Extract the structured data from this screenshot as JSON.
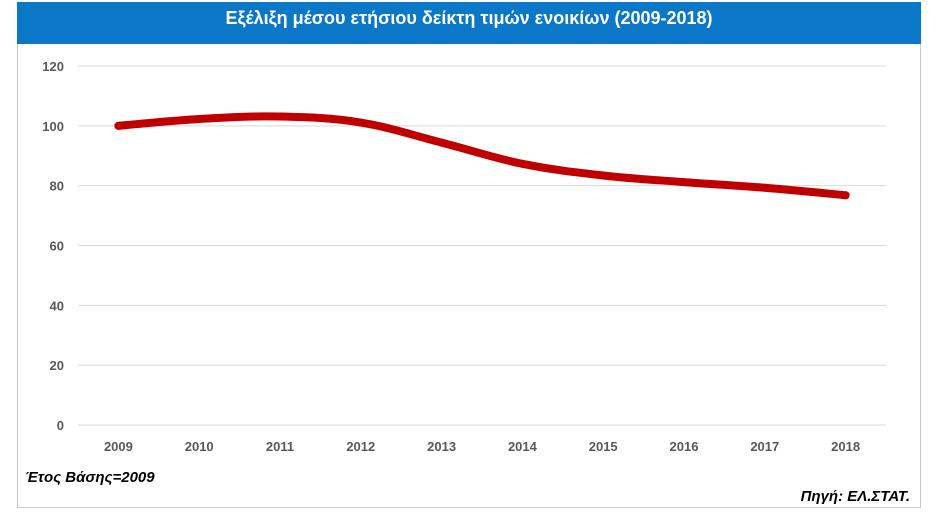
{
  "chart_data": {
    "type": "line",
    "title": "Εξέλιξη μέσου ετήσιου δείκτη τιμών ενοικίων (2009-2018)",
    "xlabel": "",
    "ylabel": "",
    "categories": [
      "2009",
      "2010",
      "2011",
      "2012",
      "2013",
      "2014",
      "2015",
      "2016",
      "2017",
      "2018"
    ],
    "y_ticks": [
      "0",
      "20",
      "40",
      "60",
      "80",
      "100",
      "120"
    ],
    "ylim": [
      0,
      120
    ],
    "grid": true,
    "series": [
      {
        "values": [
          100,
          102.3,
          103.1,
          101.1,
          94.4,
          87.3,
          83.4,
          81.2,
          79.3,
          76.8
        ],
        "color": "#c00000"
      }
    ]
  },
  "notes": {
    "base_year": "Έτος Βάσης=2009",
    "source": "Πηγή: ΕΛ.ΣΤΑΤ."
  },
  "colors": {
    "title_bg": "#0a77c7",
    "title_text": "#ffffff",
    "grid": "#d9d9d9",
    "tick_text": "#595959"
  }
}
